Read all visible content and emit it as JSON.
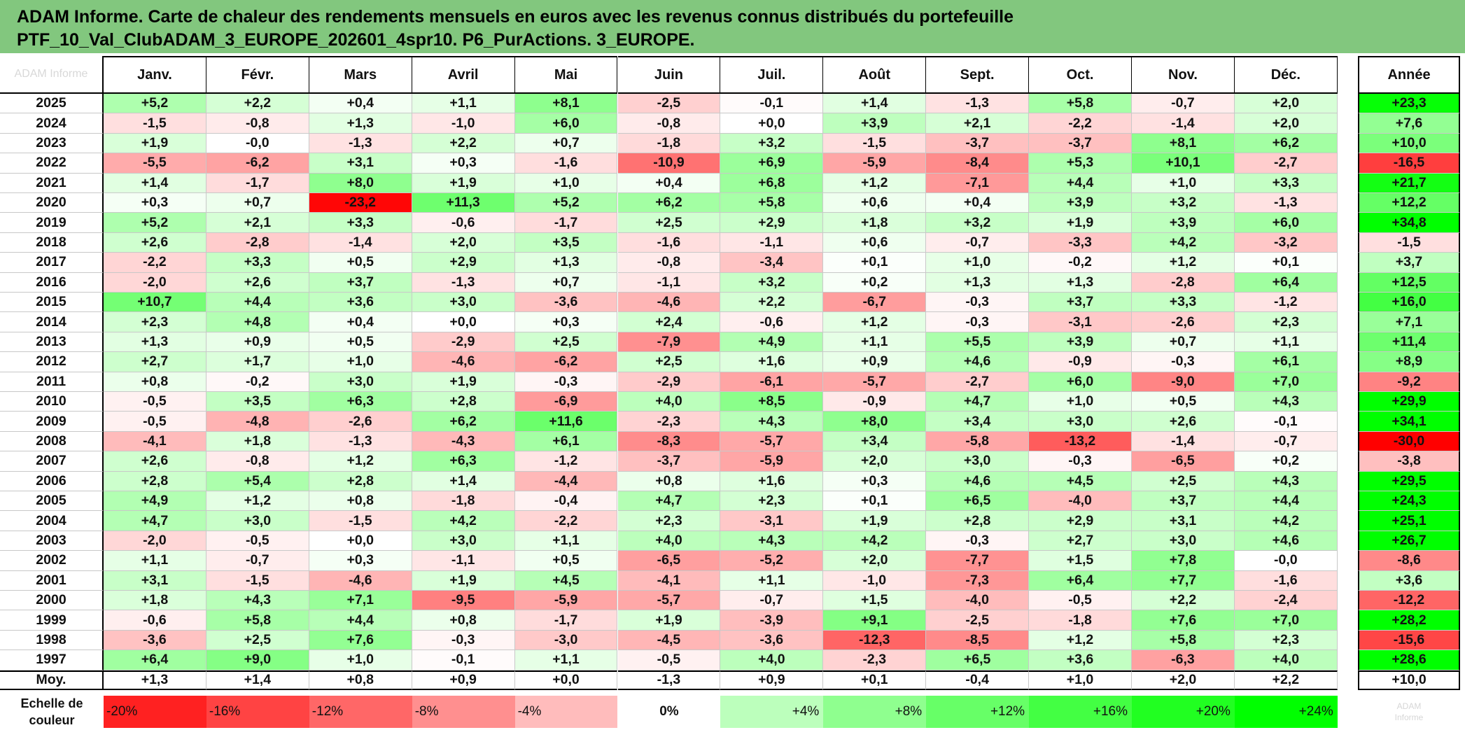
{
  "title": {
    "line1": "ADAM Informe. Carte de chaleur des rendements mensuels en euros avec les revenus connus distribués du portefeuille",
    "line2": "PTF_10_Val_ClubADAM_3_EUROPE_202601_4spr10. P6_PurActions. 3_EUROPE."
  },
  "corner_logo": "ADAM Informe",
  "scale_label_line1": "Echelle de",
  "scale_label_line2": "couleur",
  "faint_note_line1": "ADAM",
  "faint_note_line2": "Informe",
  "colors": {
    "title_bg": "#82c77e",
    "negative_max": "#ff0000",
    "neutral": "#ffffff",
    "positive_max": "#00ff00"
  },
  "chart_data": {
    "type": "heatmap",
    "columns": [
      "Janv.",
      "Févr.",
      "Mars",
      "Avril",
      "Mai",
      "Juin",
      "Juil.",
      "Août",
      "Sept.",
      "Oct.",
      "Nov.",
      "Déc."
    ],
    "total_column": "Année",
    "rows": [
      {
        "year": "2025",
        "values": [
          "+5,2",
          "+2,2",
          "+0,4",
          "+1,1",
          "+8,1",
          "-2,5",
          "-0,1",
          "+1,4",
          "-1,3",
          "+5,8",
          "-0,7",
          "+2,0"
        ],
        "annee": "+23,3"
      },
      {
        "year": "2024",
        "values": [
          "-1,5",
          "-0,8",
          "+1,3",
          "-1,0",
          "+6,0",
          "-0,8",
          "+0,0",
          "+3,9",
          "+2,1",
          "-2,2",
          "-1,4",
          "+2,0"
        ],
        "annee": "+7,6"
      },
      {
        "year": "2023",
        "values": [
          "+1,9",
          "-0,0",
          "-1,3",
          "+2,2",
          "+0,7",
          "-1,8",
          "+3,2",
          "-1,5",
          "-3,7",
          "-3,7",
          "+8,1",
          "+6,2"
        ],
        "annee": "+10,0"
      },
      {
        "year": "2022",
        "values": [
          "-5,5",
          "-6,2",
          "+3,1",
          "+0,3",
          "-1,6",
          "-10,9",
          "+6,9",
          "-5,9",
          "-8,4",
          "+5,3",
          "+10,1",
          "-2,7"
        ],
        "annee": "-16,5"
      },
      {
        "year": "2021",
        "values": [
          "+1,4",
          "-1,7",
          "+8,0",
          "+1,9",
          "+1,0",
          "+0,4",
          "+6,8",
          "+1,2",
          "-7,1",
          "+4,4",
          "+1,0",
          "+3,3"
        ],
        "annee": "+21,7"
      },
      {
        "year": "2020",
        "values": [
          "+0,3",
          "+0,7",
          "-23,2",
          "+11,3",
          "+5,2",
          "+6,2",
          "+5,8",
          "+0,6",
          "+0,4",
          "+3,9",
          "+3,2",
          "-1,3"
        ],
        "annee": "+12,2"
      },
      {
        "year": "2019",
        "values": [
          "+5,2",
          "+2,1",
          "+3,3",
          "-0,6",
          "-1,7",
          "+2,5",
          "+2,9",
          "+1,8",
          "+3,2",
          "+1,9",
          "+3,9",
          "+6,0"
        ],
        "annee": "+34,8"
      },
      {
        "year": "2018",
        "values": [
          "+2,6",
          "-2,8",
          "-1,4",
          "+2,0",
          "+3,5",
          "-1,6",
          "-1,1",
          "+0,6",
          "-0,7",
          "-3,3",
          "+4,2",
          "-3,2"
        ],
        "annee": "-1,5"
      },
      {
        "year": "2017",
        "values": [
          "-2,2",
          "+3,3",
          "+0,5",
          "+2,9",
          "+1,3",
          "-0,8",
          "-3,4",
          "+0,1",
          "+1,0",
          "-0,2",
          "+1,2",
          "+0,1"
        ],
        "annee": "+3,7"
      },
      {
        "year": "2016",
        "values": [
          "-2,0",
          "+2,6",
          "+3,7",
          "-1,3",
          "+0,7",
          "-1,1",
          "+3,2",
          "+0,2",
          "+1,3",
          "+1,3",
          "-2,8",
          "+6,4"
        ],
        "annee": "+12,5"
      },
      {
        "year": "2015",
        "values": [
          "+10,7",
          "+4,4",
          "+3,6",
          "+3,0",
          "-3,6",
          "-4,6",
          "+2,2",
          "-6,7",
          "-0,3",
          "+3,7",
          "+3,3",
          "-1,2"
        ],
        "annee": "+16,0"
      },
      {
        "year": "2014",
        "values": [
          "+2,3",
          "+4,8",
          "+0,4",
          "+0,0",
          "+0,3",
          "+2,4",
          "-0,6",
          "+1,2",
          "-0,3",
          "-3,1",
          "-2,6",
          "+2,3"
        ],
        "annee": "+7,1"
      },
      {
        "year": "2013",
        "values": [
          "+1,3",
          "+0,9",
          "+0,5",
          "-2,9",
          "+2,5",
          "-7,9",
          "+4,9",
          "+1,1",
          "+5,5",
          "+3,9",
          "+0,7",
          "+1,1"
        ],
        "annee": "+11,4"
      },
      {
        "year": "2012",
        "values": [
          "+2,7",
          "+1,7",
          "+1,0",
          "-4,6",
          "-6,2",
          "+2,5",
          "+1,6",
          "+0,9",
          "+4,6",
          "-0,9",
          "-0,3",
          "+6,1"
        ],
        "annee": "+8,9"
      },
      {
        "year": "2011",
        "values": [
          "+0,8",
          "-0,2",
          "+3,0",
          "+1,9",
          "-0,3",
          "-2,9",
          "-6,1",
          "-5,7",
          "-2,7",
          "+6,0",
          "-9,0",
          "+7,0"
        ],
        "annee": "-9,2"
      },
      {
        "year": "2010",
        "values": [
          "-0,5",
          "+3,5",
          "+6,3",
          "+2,8",
          "-6,9",
          "+4,0",
          "+8,5",
          "-0,9",
          "+4,7",
          "+1,0",
          "+0,5",
          "+4,3"
        ],
        "annee": "+29,9"
      },
      {
        "year": "2009",
        "values": [
          "-0,5",
          "-4,8",
          "-2,6",
          "+6,2",
          "+11,6",
          "-2,3",
          "+4,3",
          "+8,0",
          "+3,4",
          "+3,0",
          "+2,6",
          "-0,1"
        ],
        "annee": "+34,1"
      },
      {
        "year": "2008",
        "values": [
          "-4,1",
          "+1,8",
          "-1,3",
          "-4,3",
          "+6,1",
          "-8,3",
          "-5,7",
          "+3,4",
          "-5,8",
          "-13,2",
          "-1,4",
          "-0,7"
        ],
        "annee": "-30,0"
      },
      {
        "year": "2007",
        "values": [
          "+2,6",
          "-0,8",
          "+1,2",
          "+6,3",
          "-1,2",
          "-3,7",
          "-5,9",
          "+2,0",
          "+3,0",
          "-0,3",
          "-6,5",
          "+0,2"
        ],
        "annee": "-3,8"
      },
      {
        "year": "2006",
        "values": [
          "+2,8",
          "+5,4",
          "+2,8",
          "+1,4",
          "-4,4",
          "+0,8",
          "+1,6",
          "+0,3",
          "+4,6",
          "+4,5",
          "+2,5",
          "+4,3"
        ],
        "annee": "+29,5"
      },
      {
        "year": "2005",
        "values": [
          "+4,9",
          "+1,2",
          "+0,8",
          "-1,8",
          "-0,4",
          "+4,7",
          "+2,3",
          "+0,1",
          "+6,5",
          "-4,0",
          "+3,7",
          "+4,4"
        ],
        "annee": "+24,3"
      },
      {
        "year": "2004",
        "values": [
          "+4,7",
          "+3,0",
          "-1,5",
          "+4,2",
          "-2,2",
          "+2,3",
          "-3,1",
          "+1,9",
          "+2,8",
          "+2,9",
          "+3,1",
          "+4,2"
        ],
        "annee": "+25,1"
      },
      {
        "year": "2003",
        "values": [
          "-2,0",
          "-0,5",
          "+0,0",
          "+3,0",
          "+1,1",
          "+4,0",
          "+4,3",
          "+4,2",
          "-0,3",
          "+2,7",
          "+3,0",
          "+4,6"
        ],
        "annee": "+26,7"
      },
      {
        "year": "2002",
        "values": [
          "+1,1",
          "-0,7",
          "+0,3",
          "-1,1",
          "+0,5",
          "-6,5",
          "-5,2",
          "+2,0",
          "-7,7",
          "+1,5",
          "+7,8",
          "-0,0"
        ],
        "annee": "-8,6"
      },
      {
        "year": "2001",
        "values": [
          "+3,1",
          "-1,5",
          "-4,6",
          "+1,9",
          "+4,5",
          "-4,1",
          "+1,1",
          "-1,0",
          "-7,3",
          "+6,4",
          "+7,7",
          "-1,6"
        ],
        "annee": "+3,6"
      },
      {
        "year": "2000",
        "values": [
          "+1,8",
          "+4,3",
          "+7,1",
          "-9,5",
          "-5,9",
          "-5,7",
          "-0,7",
          "+1,5",
          "-4,0",
          "-0,5",
          "+2,2",
          "-2,4"
        ],
        "annee": "-12,2"
      },
      {
        "year": "1999",
        "values": [
          "-0,6",
          "+5,8",
          "+4,4",
          "+0,8",
          "-1,7",
          "+1,9",
          "-3,9",
          "+9,1",
          "-2,5",
          "-1,8",
          "+7,6",
          "+7,0"
        ],
        "annee": "+28,2"
      },
      {
        "year": "1998",
        "values": [
          "-3,6",
          "+2,5",
          "+7,6",
          "-0,3",
          "-3,0",
          "-4,5",
          "-3,6",
          "-12,3",
          "-8,5",
          "+1,2",
          "+5,8",
          "+2,3"
        ],
        "annee": "-15,6"
      },
      {
        "year": "1997",
        "values": [
          "+6,4",
          "+9,0",
          "+1,0",
          "-0,1",
          "+1,1",
          "-0,5",
          "+4,0",
          "-2,3",
          "+6,5",
          "+3,6",
          "-6,3",
          "+4,0"
        ],
        "annee": "+28,6"
      }
    ],
    "average": {
      "label": "Moy.",
      "values": [
        "+1,3",
        "+1,4",
        "+0,8",
        "+0,9",
        "+0,0",
        "-1,3",
        "+0,9",
        "+0,1",
        "-0,4",
        "+1,0",
        "+2,0",
        "+2,2"
      ],
      "annee": "+10,0"
    },
    "color_scale": [
      "-20%",
      "-16%",
      "-12%",
      "-8%",
      "-4%",
      "0%",
      "+4%",
      "+8%",
      "+12%",
      "+16%",
      "+20%",
      "+24%"
    ],
    "color_scale_values": [
      -20,
      -16,
      -12,
      -8,
      -4,
      0,
      4,
      8,
      12,
      16,
      20,
      24
    ],
    "value_range": [
      -24,
      24
    ]
  }
}
